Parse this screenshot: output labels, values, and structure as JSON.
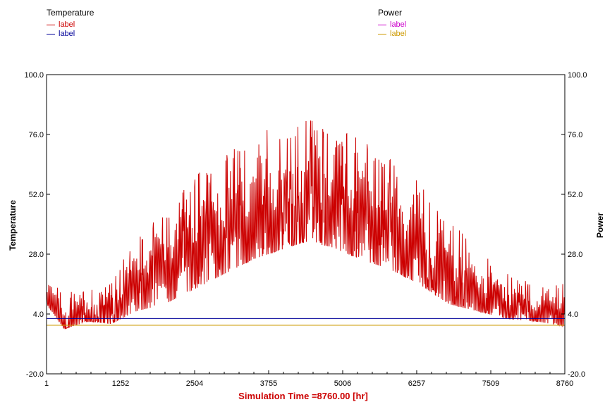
{
  "legend": {
    "left_title": "Temperature",
    "left_items": [
      {
        "label": "label",
        "color": "#cc0000"
      },
      {
        "label": "label",
        "color": "#000099"
      }
    ],
    "right_title": "Power",
    "right_items": [
      {
        "label": "label",
        "color": "#cc00cc"
      },
      {
        "label": "label",
        "color": "#cc9900"
      }
    ]
  },
  "chart_data": {
    "type": "line",
    "xlabel": "Simulation Time =8760.00 [hr]",
    "xlabel_color": "#cc0000",
    "ylabel_left": "Temperature",
    "ylabel_right": "Power",
    "xlim": [
      1,
      8760
    ],
    "ylim": [
      -20,
      100
    ],
    "xticks": [
      "1",
      "1252",
      "2504",
      "3755",
      "5006",
      "6257",
      "7509",
      "8760"
    ],
    "yticks_left": [
      "-20.0",
      "4.0",
      "28.0",
      "52.0",
      "76.0",
      "100.0"
    ],
    "yticks_right": [
      "-20.0",
      "4.0",
      "28.0",
      "52.0",
      "76.0",
      "100.0"
    ],
    "grid": false,
    "series": [
      {
        "name": "label",
        "color": "#cc0000",
        "axis": "left",
        "baseline": [
          [
            1,
            8
          ],
          [
            300,
            0
          ],
          [
            700,
            4
          ],
          [
            1100,
            5
          ],
          [
            1500,
            14
          ],
          [
            2000,
            22
          ],
          [
            2500,
            30
          ],
          [
            3000,
            35
          ],
          [
            3500,
            40
          ],
          [
            4000,
            45
          ],
          [
            4380,
            47
          ],
          [
            4800,
            45
          ],
          [
            5300,
            40
          ],
          [
            5800,
            34
          ],
          [
            6300,
            28
          ],
          [
            6800,
            17
          ],
          [
            7300,
            12
          ],
          [
            7800,
            7
          ],
          [
            8300,
            4
          ],
          [
            8760,
            5
          ]
        ],
        "envelope_min": [
          [
            1,
            8
          ],
          [
            300,
            -2
          ],
          [
            700,
            1
          ],
          [
            1100,
            0
          ],
          [
            1500,
            5
          ],
          [
            2000,
            8
          ],
          [
            2500,
            14
          ],
          [
            3000,
            20
          ],
          [
            3500,
            26
          ],
          [
            4000,
            30
          ],
          [
            4380,
            33
          ],
          [
            4800,
            31
          ],
          [
            5300,
            26
          ],
          [
            5800,
            22
          ],
          [
            6300,
            16
          ],
          [
            6800,
            8
          ],
          [
            7300,
            5
          ],
          [
            7800,
            2
          ],
          [
            8300,
            1
          ],
          [
            8760,
            -1
          ]
        ],
        "envelope_max": [
          [
            1,
            22
          ],
          [
            300,
            12
          ],
          [
            700,
            15
          ],
          [
            1100,
            18
          ],
          [
            1500,
            35
          ],
          [
            2000,
            45
          ],
          [
            2500,
            60
          ],
          [
            3000,
            70
          ],
          [
            3500,
            77
          ],
          [
            4000,
            80
          ],
          [
            4380,
            82
          ],
          [
            4800,
            80
          ],
          [
            5300,
            74
          ],
          [
            5800,
            66
          ],
          [
            6300,
            58
          ],
          [
            6800,
            42
          ],
          [
            7300,
            30
          ],
          [
            7800,
            20
          ],
          [
            8300,
            16
          ],
          [
            8760,
            16
          ]
        ]
      },
      {
        "name": "label",
        "color": "#000099",
        "axis": "left",
        "points": [
          [
            1,
            2.2
          ],
          [
            8760,
            2.2
          ]
        ]
      },
      {
        "name": "label",
        "color": "#cc9900",
        "axis": "right",
        "points": [
          [
            1,
            -0.5
          ],
          [
            8760,
            -0.5
          ]
        ]
      }
    ]
  }
}
